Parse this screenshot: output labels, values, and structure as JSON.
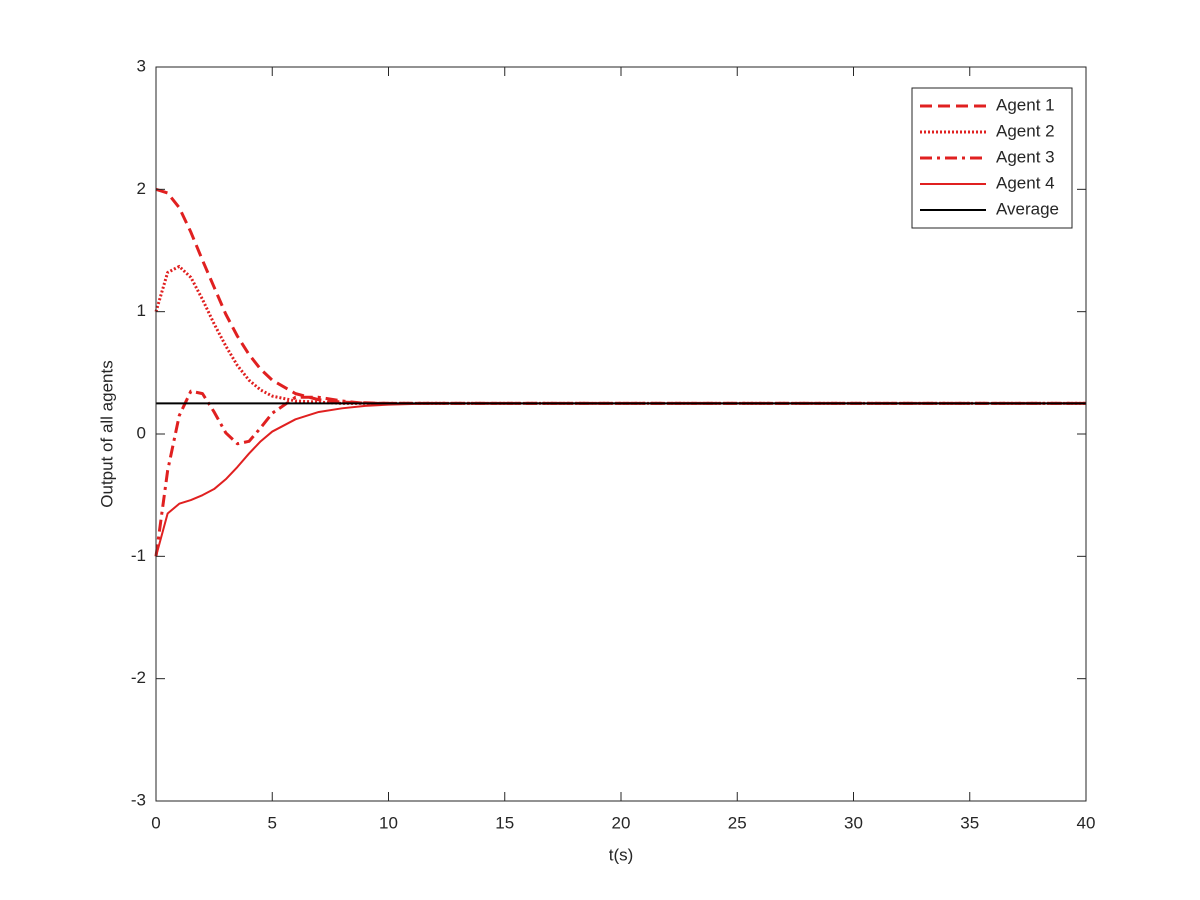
{
  "chart_data": {
    "type": "line",
    "xlabel": "t(s)",
    "ylabel": "Output of all agents",
    "x": [
      0,
      0.5,
      1,
      1.5,
      2,
      2.5,
      3,
      3.5,
      4,
      4.5,
      5,
      6,
      7,
      8,
      9,
      10,
      12,
      15,
      20,
      30,
      40
    ],
    "series": [
      {
        "name": "Agent 1",
        "color": "#e02020",
        "style": "dashed",
        "values": [
          2,
          1.97,
          1.85,
          1.65,
          1.42,
          1.2,
          0.98,
          0.8,
          0.65,
          0.53,
          0.44,
          0.33,
          0.28,
          0.26,
          0.255,
          0.25,
          0.25,
          0.25,
          0.25,
          0.25,
          0.25
        ]
      },
      {
        "name": "Agent 2",
        "color": "#e02020",
        "style": "dotted",
        "values": [
          1,
          1.32,
          1.37,
          1.28,
          1.1,
          0.9,
          0.72,
          0.56,
          0.44,
          0.36,
          0.31,
          0.27,
          0.26,
          0.25,
          0.25,
          0.25,
          0.25,
          0.25,
          0.25,
          0.25,
          0.25
        ]
      },
      {
        "name": "Agent 3",
        "color": "#e02020",
        "style": "dashdot",
        "values": [
          -1,
          -0.3,
          0.15,
          0.35,
          0.33,
          0.18,
          0.01,
          -0.08,
          -0.06,
          0.05,
          0.17,
          0.3,
          0.3,
          0.27,
          0.25,
          0.25,
          0.25,
          0.25,
          0.25,
          0.25,
          0.25
        ]
      },
      {
        "name": "Agent 4",
        "color": "#e02020",
        "style": "solid",
        "values": [
          -1,
          -0.65,
          -0.57,
          -0.54,
          -0.5,
          -0.45,
          -0.37,
          -0.27,
          -0.16,
          -0.06,
          0.02,
          0.12,
          0.18,
          0.21,
          0.23,
          0.24,
          0.25,
          0.25,
          0.25,
          0.25,
          0.25
        ]
      },
      {
        "name": "Average",
        "color": "#000000",
        "style": "solid",
        "values": [
          0.25,
          0.25,
          0.25,
          0.25,
          0.25,
          0.25,
          0.25,
          0.25,
          0.25,
          0.25,
          0.25,
          0.25,
          0.25,
          0.25,
          0.25,
          0.25,
          0.25,
          0.25,
          0.25,
          0.25,
          0.25
        ]
      }
    ],
    "xlim": [
      0,
      40
    ],
    "xticks": [
      0,
      5,
      10,
      15,
      20,
      25,
      30,
      35,
      40
    ],
    "ylim": [
      -3,
      3
    ],
    "yticks": [
      -3,
      -2,
      -1,
      0,
      1,
      2,
      3
    ],
    "grid": false,
    "legend": "top-right"
  }
}
